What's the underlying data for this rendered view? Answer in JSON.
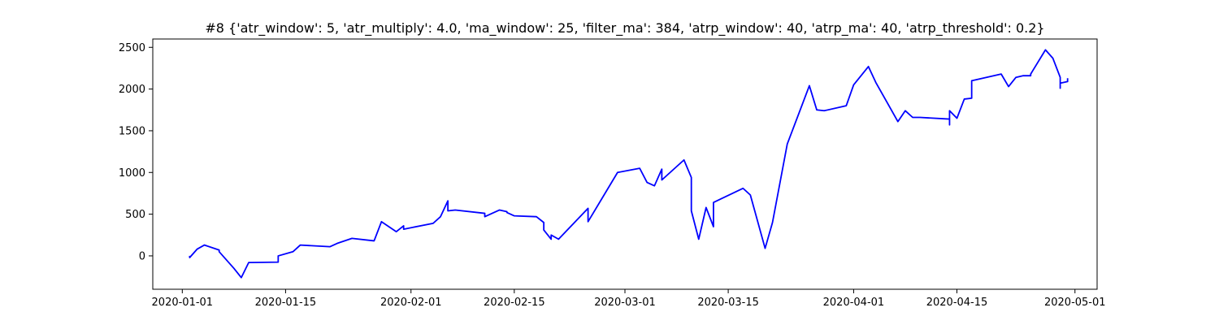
{
  "chart_data": {
    "type": "line",
    "title": "#8 {'atr_window': 5, 'atr_multiply': 4.0, 'ma_window': 25, 'filter_ma': 384, 'atrp_window': 40, 'atrp_ma': 40, 'atrp_threshold': 0.2}",
    "xlabel": "",
    "ylabel": "",
    "x_axis_type": "date",
    "xlim": [
      "2020-12-28",
      "2020-05-04"
    ],
    "ylim": [
      -400,
      2600
    ],
    "grid": false,
    "line_color": "#0000ff",
    "x_ticks": [
      {
        "label": "2020-01-01",
        "date": "2020-01-01"
      },
      {
        "label": "2020-01-15",
        "date": "2020-01-15"
      },
      {
        "label": "2020-02-01",
        "date": "2020-02-01"
      },
      {
        "label": "2020-02-15",
        "date": "2020-02-15"
      },
      {
        "label": "2020-03-01",
        "date": "2020-03-01"
      },
      {
        "label": "2020-03-15",
        "date": "2020-03-15"
      },
      {
        "label": "2020-04-01",
        "date": "2020-04-01"
      },
      {
        "label": "2020-04-15",
        "date": "2020-04-15"
      },
      {
        "label": "2020-05-01",
        "date": "2020-05-01"
      }
    ],
    "y_ticks": [
      0,
      500,
      1000,
      1500,
      2000,
      2500
    ],
    "series": [
      {
        "x": [
          "2020-01-02",
          "2020-01-02",
          "2020-01-03",
          "2020-01-04",
          "2020-01-06",
          "2020-01-06",
          "2020-01-07",
          "2020-01-08",
          "2020-01-09",
          "2020-01-10",
          "2020-01-14",
          "2020-01-14",
          "2020-01-16",
          "2020-01-17",
          "2020-01-21",
          "2020-01-22",
          "2020-01-24",
          "2020-01-27",
          "2020-01-28",
          "2020-01-30",
          "2020-01-31",
          "2020-01-31",
          "2020-02-04",
          "2020-02-05",
          "2020-02-06",
          "2020-02-06",
          "2020-02-07",
          "2020-02-11",
          "2020-02-11",
          "2020-02-13",
          "2020-02-14",
          "2020-02-14",
          "2020-02-15",
          "2020-02-18",
          "2020-02-19",
          "2020-02-19",
          "2020-02-20",
          "2020-02-20",
          "2020-02-21",
          "2020-02-25",
          "2020-02-25",
          "2020-02-29",
          "2020-03-03",
          "2020-03-04",
          "2020-03-05",
          "2020-03-06",
          "2020-03-06",
          "2020-03-09",
          "2020-03-10",
          "2020-03-10",
          "2020-03-11",
          "2020-03-12",
          "2020-03-13",
          "2020-03-13",
          "2020-03-17",
          "2020-03-18",
          "2020-03-20",
          "2020-03-21",
          "2020-03-23",
          "2020-03-26",
          "2020-03-27",
          "2020-03-28",
          "2020-03-31",
          "2020-04-01",
          "2020-04-03",
          "2020-04-04",
          "2020-04-07",
          "2020-04-08",
          "2020-04-09",
          "2020-04-10",
          "2020-04-14",
          "2020-04-14",
          "2020-04-14",
          "2020-04-15",
          "2020-04-16",
          "2020-04-17",
          "2020-04-17",
          "2020-04-21",
          "2020-04-22",
          "2020-04-23",
          "2020-04-24",
          "2020-04-25",
          "2020-04-25",
          "2020-04-27",
          "2020-04-28",
          "2020-04-29",
          "2020-04-29",
          "2020-04-29",
          "2020-04-30",
          "2020-04-30"
        ],
        "y": [
          0,
          -20,
          80,
          130,
          70,
          50,
          -50,
          -150,
          -260,
          -80,
          -75,
          0,
          50,
          130,
          110,
          150,
          210,
          180,
          410,
          290,
          360,
          320,
          390,
          470,
          660,
          540,
          550,
          510,
          470,
          550,
          530,
          520,
          480,
          470,
          400,
          310,
          200,
          250,
          200,
          570,
          410,
          1000,
          1050,
          880,
          840,
          1040,
          910,
          1150,
          940,
          540,
          200,
          580,
          350,
          640,
          810,
          730,
          90,
          400,
          1340,
          2040,
          1750,
          1740,
          1800,
          2050,
          2270,
          2080,
          1610,
          1740,
          1660,
          1660,
          1640,
          1570,
          1740,
          1650,
          1880,
          1890,
          2100,
          2180,
          2030,
          2140,
          2160,
          2160,
          2180,
          2470,
          2370,
          2140,
          2010,
          2070,
          2090,
          2130
        ]
      }
    ]
  }
}
